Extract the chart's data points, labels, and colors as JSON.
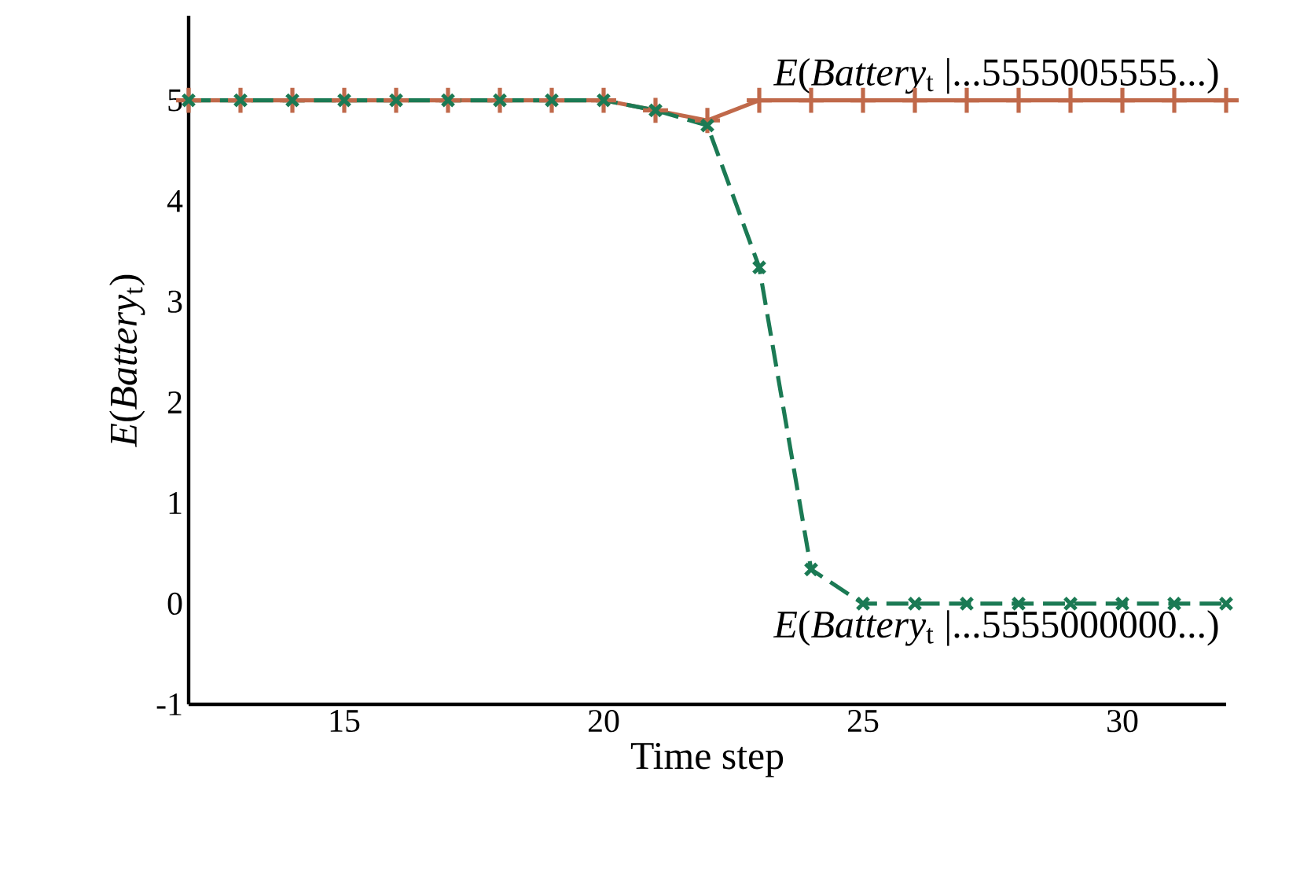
{
  "chart_data": {
    "type": "line",
    "xlabel": "Time step",
    "ylabel": "*E*(*Battery*$_{t}$)",
    "x": [
      12,
      13,
      14,
      15,
      16,
      17,
      18,
      19,
      20,
      21,
      22,
      23,
      24,
      25,
      26,
      27,
      28,
      29,
      30,
      31,
      32
    ],
    "xlim": [
      12,
      32
    ],
    "xticks": [
      15,
      20,
      25,
      30
    ],
    "ylim": [
      -1,
      5.84
    ],
    "yticks": [
      -1,
      0,
      1,
      2,
      3,
      4,
      5
    ],
    "grid": false,
    "legend": false,
    "series": [
      {
        "name": "*E*(*Battery*$_{t}$ |...5555005555...)",
        "color": "#c0694a",
        "marker": "cross",
        "line_style": "solid",
        "values": [
          5,
          5,
          5,
          5,
          5,
          5,
          5,
          5,
          5,
          4.9,
          4.8,
          5,
          5,
          5,
          5,
          5,
          5,
          5,
          5,
          5,
          5
        ]
      },
      {
        "name": "*E*(*Battery*$_{t}$ |...5555000000...)",
        "color": "#1b7a54",
        "marker": "x",
        "line_style": "dashed",
        "values": [
          5,
          5,
          5,
          5,
          5,
          5,
          5,
          5,
          5,
          4.9,
          4.75,
          3.34,
          0.34,
          0,
          0,
          0,
          0,
          0,
          0,
          0,
          0
        ]
      }
    ]
  }
}
